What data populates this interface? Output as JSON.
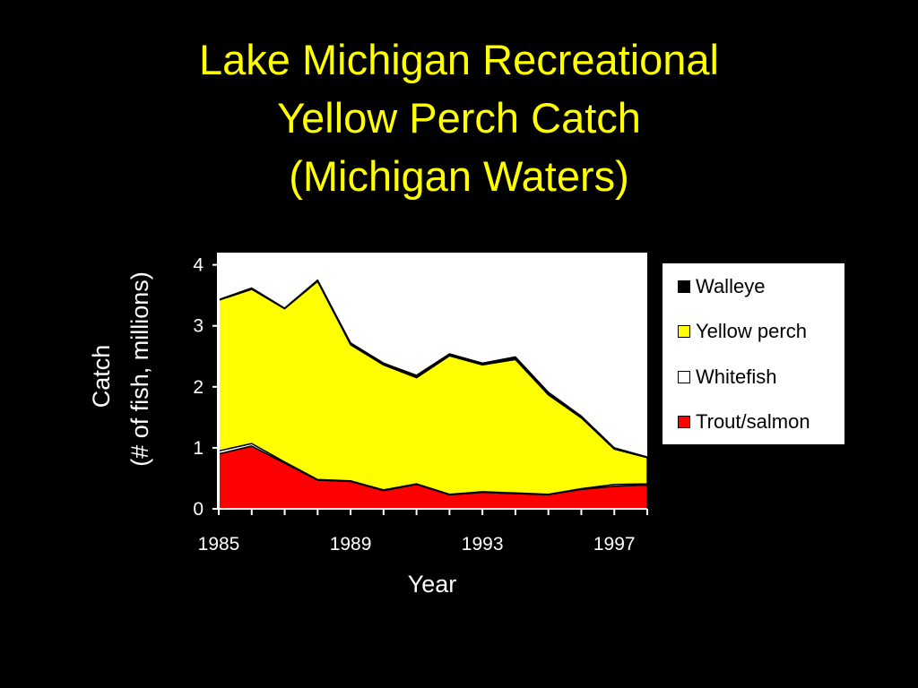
{
  "slide": {
    "title_lines": [
      "Lake Michigan Recreational",
      "Yellow Perch Catch",
      "(Michigan Waters)"
    ]
  },
  "chart_data": {
    "type": "area",
    "stacked": true,
    "x": [
      1985,
      1986,
      1987,
      1988,
      1989,
      1990,
      1991,
      1992,
      1993,
      1994,
      1995,
      1996,
      1997,
      1998
    ],
    "xticks": [
      "1985",
      "1989",
      "1993",
      "1997"
    ],
    "xlabel": "Year",
    "ylabel_lines": [
      "Catch",
      "(# of fish, millions)"
    ],
    "yticks": [
      "0",
      "1",
      "2",
      "3",
      "4"
    ],
    "ylim": [
      0,
      4.2
    ],
    "xlim": [
      1985,
      1998
    ],
    "plot_background": "#ffffff",
    "page_background": "#000000",
    "text_color": "#ffffff",
    "legend_position": "right",
    "series": [
      {
        "name": "Trout/salmon",
        "color": "#ff0000",
        "values": [
          0.9,
          1.03,
          0.75,
          0.47,
          0.45,
          0.3,
          0.4,
          0.23,
          0.27,
          0.25,
          0.23,
          0.32,
          0.37,
          0.39
        ]
      },
      {
        "name": "Whitefish",
        "color": "#ffffff",
        "values": [
          0.05,
          0.04,
          0.02,
          0.01,
          0.01,
          0.01,
          0.01,
          0.01,
          0.01,
          0.01,
          0.01,
          0.01,
          0.03,
          0.02
        ]
      },
      {
        "name": "Yellow perch",
        "color": "#ffff00",
        "values": [
          2.47,
          2.53,
          2.51,
          3.25,
          2.23,
          2.05,
          1.74,
          2.27,
          2.08,
          2.19,
          1.63,
          1.16,
          0.58,
          0.43
        ]
      },
      {
        "name": "Walleye",
        "color": "#000000",
        "values": [
          0.01,
          0.02,
          0.01,
          0.02,
          0.03,
          0.03,
          0.04,
          0.03,
          0.03,
          0.04,
          0.04,
          0.03,
          0.02,
          0.01
        ]
      }
    ]
  }
}
